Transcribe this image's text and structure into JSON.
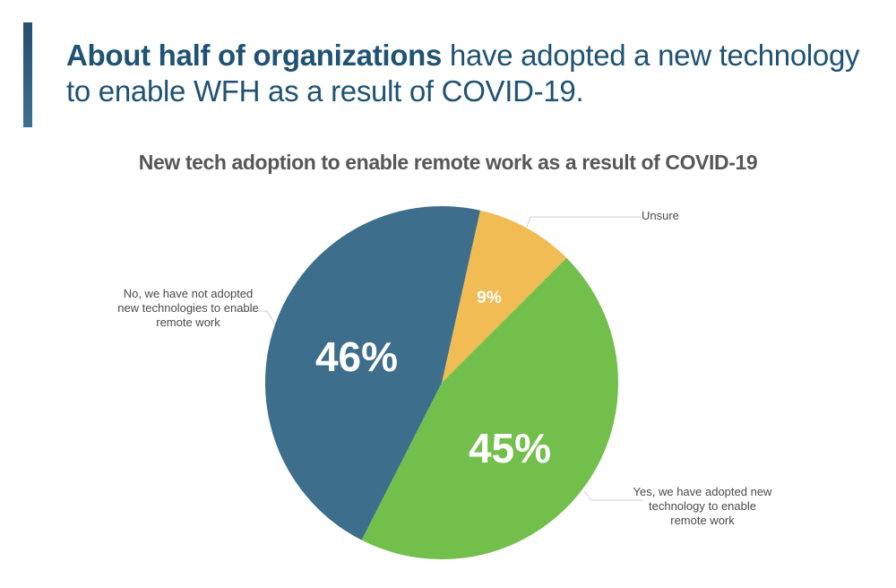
{
  "header": {
    "headline_bold": "About half of organizations",
    "headline_rest": " have adopted a new technology to enable WFH as a result of COVID-19."
  },
  "colors": {
    "accent": "#2d5b7c",
    "headline": "#1f5273",
    "no": "#3d6e8c",
    "unsure": "#f2bc55",
    "yes": "#72bf4b"
  },
  "chart_data": {
    "type": "pie",
    "title": "New tech adoption to enable remote work as a result of COVID-19",
    "start_angle_deg": 12.6,
    "direction": "clockwise",
    "slices": [
      {
        "key": "unsure",
        "label": "Unsure",
        "value": 9,
        "display": "9%",
        "color": "#f2bc55"
      },
      {
        "key": "yes",
        "label": "Yes, we have adopted new technology to enable remote work",
        "value": 45,
        "display": "45%",
        "color": "#72bf4b"
      },
      {
        "key": "no",
        "label": "No, we have not adopted new technologies to enable remote work",
        "value": 46,
        "display": "46%",
        "color": "#3d6e8c"
      }
    ]
  }
}
